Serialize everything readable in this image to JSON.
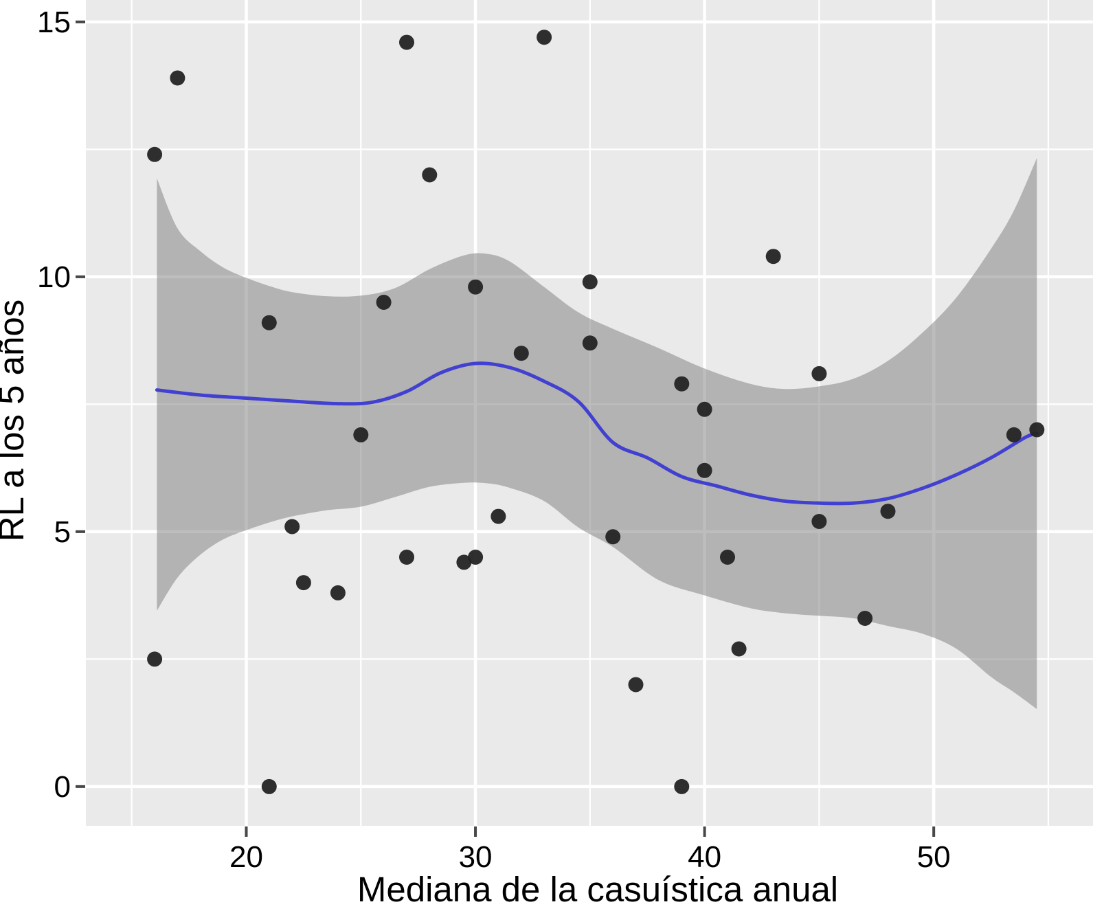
{
  "figure": {
    "background": "#ffffff",
    "panel_bg": "#eaeaea",
    "grid_color": "#ffffff",
    "ribbon_rgba": "rgba(124,124,124,0.5)",
    "line_color": "#4140d0",
    "point_color": "#242424",
    "tick_color": "#474747",
    "text_color": "#000000"
  },
  "chart_data": {
    "type": "scatter",
    "title": "",
    "xlabel": "Mediana de la casuística anual",
    "ylabel": "RL a los 5 años",
    "legend": "none",
    "grid": "on",
    "xlim": [
      13.0,
      56.95
    ],
    "ylim": [
      -0.77,
      15.43
    ],
    "x_ticks": [
      20,
      30,
      40,
      50
    ],
    "x_minor_ticks": [
      15,
      25,
      35,
      45,
      55
    ],
    "y_ticks": [
      0,
      5,
      10,
      15
    ],
    "y_minor_ticks": [
      2.5,
      7.5,
      12.5
    ],
    "points": [
      [
        17,
        13.9
      ],
      [
        16,
        12.4
      ],
      [
        27,
        14.6
      ],
      [
        33,
        14.7
      ],
      [
        28,
        12.0
      ],
      [
        43,
        10.4
      ],
      [
        35,
        9.9
      ],
      [
        30,
        9.8
      ],
      [
        26,
        9.5
      ],
      [
        21,
        9.1
      ],
      [
        35,
        8.7
      ],
      [
        32,
        8.5
      ],
      [
        45,
        8.1
      ],
      [
        39,
        7.9
      ],
      [
        40,
        7.4
      ],
      [
        25,
        6.9
      ],
      [
        53.5,
        6.9
      ],
      [
        54.5,
        7.0
      ],
      [
        40,
        6.2
      ],
      [
        45,
        5.2
      ],
      [
        48,
        5.4
      ],
      [
        22,
        5.1
      ],
      [
        31,
        5.3
      ],
      [
        36,
        4.9
      ],
      [
        27,
        4.5
      ],
      [
        29.5,
        4.4
      ],
      [
        30,
        4.5
      ],
      [
        41,
        4.5
      ],
      [
        22.5,
        4.0
      ],
      [
        24,
        3.8
      ],
      [
        47,
        3.3
      ],
      [
        41.5,
        2.7
      ],
      [
        37,
        2.0
      ],
      [
        16,
        2.5
      ],
      [
        21,
        0.0
      ],
      [
        39,
        0.0
      ]
    ],
    "smooth_line": [
      [
        16.1,
        7.78
      ],
      [
        18,
        7.68
      ],
      [
        20,
        7.62
      ],
      [
        22,
        7.56
      ],
      [
        24,
        7.51
      ],
      [
        25.5,
        7.54
      ],
      [
        27,
        7.75
      ],
      [
        28.5,
        8.12
      ],
      [
        30,
        8.3
      ],
      [
        31.5,
        8.22
      ],
      [
        33,
        7.95
      ],
      [
        34.5,
        7.55
      ],
      [
        36,
        6.75
      ],
      [
        37.5,
        6.45
      ],
      [
        39,
        6.08
      ],
      [
        40.5,
        5.9
      ],
      [
        42,
        5.72
      ],
      [
        43.5,
        5.6
      ],
      [
        45,
        5.56
      ],
      [
        46.5,
        5.56
      ],
      [
        48,
        5.65
      ],
      [
        49.5,
        5.85
      ],
      [
        51,
        6.12
      ],
      [
        52.5,
        6.45
      ],
      [
        54,
        6.85
      ],
      [
        54.5,
        6.93
      ]
    ],
    "ribbon_upper": [
      [
        16.1,
        11.93
      ],
      [
        17,
        10.95
      ],
      [
        18,
        10.5
      ],
      [
        19,
        10.18
      ],
      [
        20,
        9.98
      ],
      [
        21,
        9.82
      ],
      [
        22,
        9.7
      ],
      [
        23.5,
        9.62
      ],
      [
        25,
        9.63
      ],
      [
        26.5,
        9.78
      ],
      [
        28,
        10.15
      ],
      [
        29.5,
        10.42
      ],
      [
        30.5,
        10.45
      ],
      [
        31.5,
        10.3
      ],
      [
        33,
        9.8
      ],
      [
        34.5,
        9.3
      ],
      [
        36,
        8.98
      ],
      [
        38,
        8.6
      ],
      [
        40,
        8.2
      ],
      [
        42,
        7.9
      ],
      [
        43.5,
        7.8
      ],
      [
        45,
        7.85
      ],
      [
        46.5,
        8.0
      ],
      [
        48,
        8.35
      ],
      [
        49.5,
        8.9
      ],
      [
        51,
        9.6
      ],
      [
        52.5,
        10.55
      ],
      [
        53.5,
        11.3
      ],
      [
        54.5,
        12.33
      ]
    ],
    "ribbon_lower": [
      [
        16.1,
        3.45
      ],
      [
        17,
        4.1
      ],
      [
        18,
        4.55
      ],
      [
        19,
        4.85
      ],
      [
        20,
        5.03
      ],
      [
        21,
        5.18
      ],
      [
        22,
        5.3
      ],
      [
        23.5,
        5.42
      ],
      [
        25,
        5.49
      ],
      [
        26.5,
        5.68
      ],
      [
        28,
        5.88
      ],
      [
        29.5,
        5.96
      ],
      [
        30.5,
        5.95
      ],
      [
        31.5,
        5.86
      ],
      [
        33,
        5.6
      ],
      [
        34.5,
        5.08
      ],
      [
        36,
        4.7
      ],
      [
        38,
        4.05
      ],
      [
        40,
        3.75
      ],
      [
        42,
        3.5
      ],
      [
        43.5,
        3.4
      ],
      [
        45,
        3.35
      ],
      [
        46.5,
        3.3
      ],
      [
        48,
        3.15
      ],
      [
        49.5,
        3.0
      ],
      [
        51,
        2.7
      ],
      [
        52.5,
        2.15
      ],
      [
        53.5,
        1.85
      ],
      [
        54.5,
        1.52
      ]
    ]
  }
}
